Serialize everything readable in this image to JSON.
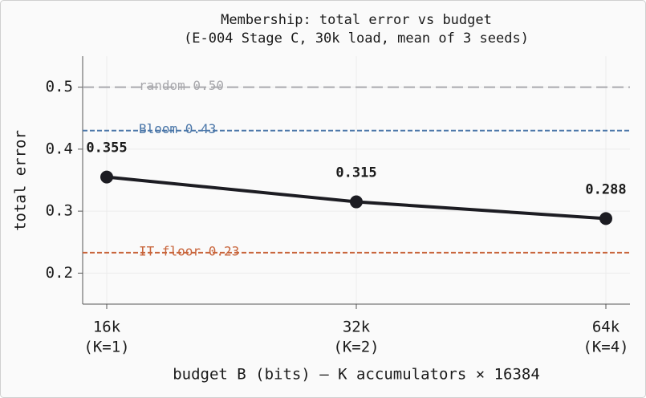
{
  "chart_data": {
    "type": "line",
    "title": "Membership: total error vs budget",
    "subtitle": "(E-004 Stage C, 30k load, mean of 3 seeds)",
    "x_label": "budget B (bits) — K accumulators × 16384",
    "y_label": "total error",
    "categories": [
      [
        "16k",
        "(K=1)"
      ],
      [
        "32k",
        "(K=2)"
      ],
      [
        "64k",
        "(K=4)"
      ]
    ],
    "series": [
      {
        "name": "total error",
        "color": "#1c1c22",
        "values": [
          0.355,
          0.315,
          0.288
        ]
      }
    ],
    "ylim": [
      0.15,
      0.55
    ],
    "yticks": [
      0.2,
      0.3,
      0.4,
      0.5
    ],
    "grid": true,
    "reference_lines": [
      {
        "label": "random 0.50",
        "value": 0.5,
        "color": "#a9a9ad",
        "dash": "long"
      },
      {
        "label": "Bloom 0.43",
        "value": 0.43,
        "color": "#4a76a8",
        "dash": "short"
      },
      {
        "label": "IT floor 0.23",
        "value": 0.233,
        "color": "#c8643a",
        "dash": "short"
      }
    ]
  }
}
